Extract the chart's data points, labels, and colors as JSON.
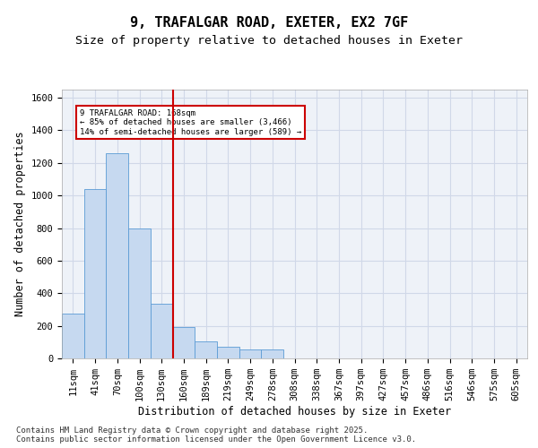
{
  "title_line1": "9, TRAFALGAR ROAD, EXETER, EX2 7GF",
  "title_line2": "Size of property relative to detached houses in Exeter",
  "xlabel": "Distribution of detached houses by size in Exeter",
  "ylabel": "Number of detached properties",
  "bin_labels": [
    "11sqm",
    "41sqm",
    "70sqm",
    "100sqm",
    "130sqm",
    "160sqm",
    "189sqm",
    "219sqm",
    "249sqm",
    "278sqm",
    "308sqm",
    "338sqm",
    "367sqm",
    "397sqm",
    "427sqm",
    "457sqm",
    "486sqm",
    "516sqm",
    "546sqm",
    "575sqm",
    "605sqm"
  ],
  "bar_values": [
    275,
    1040,
    1260,
    800,
    335,
    190,
    105,
    70,
    55,
    55,
    0,
    0,
    0,
    0,
    0,
    0,
    0,
    0,
    0,
    0,
    0
  ],
  "bar_color": "#c6d9f0",
  "bar_edge_color": "#5b9bd5",
  "grid_color": "#d0d8e8",
  "background_color": "#eef2f8",
  "vline_x_index": 5,
  "vline_color": "#cc0000",
  "annotation_text": "9 TRAFALGAR ROAD: 168sqm\n← 85% of detached houses are smaller (3,466)\n14% of semi-detached houses are larger (589) →",
  "annotation_box_color": "#cc0000",
  "ylim": [
    0,
    1650
  ],
  "yticks": [
    0,
    200,
    400,
    600,
    800,
    1000,
    1200,
    1400,
    1600
  ],
  "footer_text": "Contains HM Land Registry data © Crown copyright and database right 2025.\nContains public sector information licensed under the Open Government Licence v3.0.",
  "title_fontsize": 11,
  "subtitle_fontsize": 9.5,
  "label_fontsize": 8.5,
  "tick_fontsize": 7.5,
  "footer_fontsize": 6.5
}
